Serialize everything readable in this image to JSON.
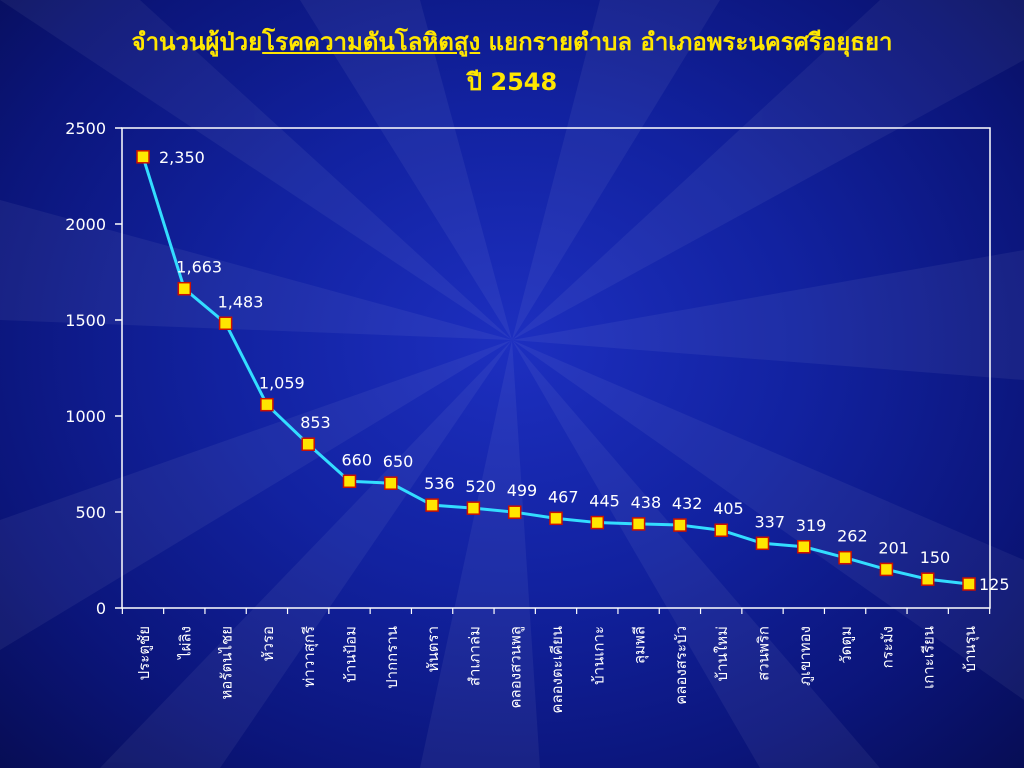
{
  "title": {
    "part1": "จำนวนผู้ป่วย",
    "part2_underlined": "โรคความดันโลหิตสูง",
    "part3": " แยกรายตำบล อำเภอพระนครศรีอยุธยา",
    "line2": "ปี 2548"
  },
  "colors": {
    "background": "#1222a0",
    "line": "#33ddff",
    "marker_fill": "#ffe600",
    "marker_stroke": "#cc1100",
    "text": "#ffffff",
    "title": "#ffe600"
  },
  "chart_data": {
    "type": "line",
    "title": "จำนวนผู้ป่วยโรคความดันโลหิตสูง แยกรายตำบล อำเภอพระนครศรีอยุธยา ปี 2548",
    "xlabel": "",
    "ylabel": "",
    "ylim": [
      0,
      2500
    ],
    "yticks": [
      "0",
      "500",
      "1000",
      "1500",
      "2000",
      "2500"
    ],
    "grid": false,
    "legend": "none",
    "categories": [
      "ประตูชัย",
      "ไผ่ลิง",
      "หอรัตนไชย",
      "หัวรอ",
      "ท่าวาสุกรี",
      "บ้านป้อม",
      "ปากกราน",
      "หันตรา",
      "สำเภาล่ม",
      "คลองสวนพลู",
      "คลองตะเคียน",
      "บ้านเกาะ",
      "ลุมพลี",
      "คลองสระบัว",
      "บ้านใหม่",
      "สวนพริก",
      "ภูเขาทอง",
      "วัดตูม",
      "กระมัง",
      "เกาะเรียน",
      "บ้านรุน"
    ],
    "values": [
      2350,
      1663,
      1483,
      1059,
      853,
      660,
      650,
      536,
      520,
      499,
      467,
      445,
      438,
      432,
      405,
      337,
      319,
      262,
      201,
      150,
      125
    ],
    "data_labels": [
      "2,350",
      "1,663",
      "1,483",
      "1,059",
      "853",
      "660",
      "650",
      "536",
      "520",
      "499",
      "467",
      "445",
      "438",
      "432",
      "405",
      "337",
      "319",
      "262",
      "201",
      "150",
      "125"
    ]
  }
}
